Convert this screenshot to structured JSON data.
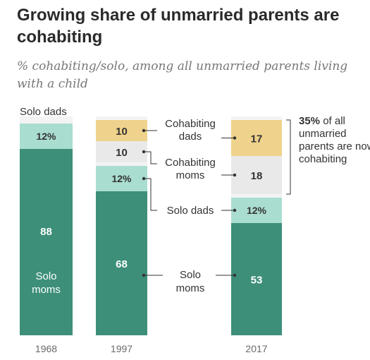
{
  "title": "Growing share of unmarried parents are cohabiting",
  "subtitle": "% cohabiting/solo, among all unmarried parents living with a child",
  "chart_data": {
    "type": "bar",
    "stacked": true,
    "categories": [
      "1968",
      "1997",
      "2017"
    ],
    "series": [
      {
        "name": "Solo moms",
        "values": [
          88,
          68,
          53
        ],
        "color": "#3d8f7a"
      },
      {
        "name": "Solo dads",
        "values": [
          12,
          12,
          12
        ],
        "color": "#a9ddd0"
      },
      {
        "name": "Cohabiting moms",
        "values": [
          0,
          10,
          18
        ],
        "color": "#e9e9e9"
      },
      {
        "name": "Cohabiting dads",
        "values": [
          0,
          10,
          17
        ],
        "color": "#efd38c"
      }
    ],
    "data_labels": {
      "1968": [
        "88",
        "12%",
        "",
        ""
      ],
      "1997": [
        "68",
        "12%",
        "10",
        "10"
      ],
      "2017": [
        "53",
        "12%",
        "18",
        "17"
      ]
    },
    "labels": {
      "solo_moms_in_bar": "Solo moms",
      "solo_dads_above": "Solo dads",
      "cohabiting_dads": "Cohabiting dads",
      "cohabiting_moms": "Cohabiting moms",
      "solo_dads": "Solo dads",
      "solo_moms": "Solo moms"
    },
    "annotation": {
      "highlight": "35%",
      "text": "of all unmarried parents are now cohabiting"
    }
  }
}
